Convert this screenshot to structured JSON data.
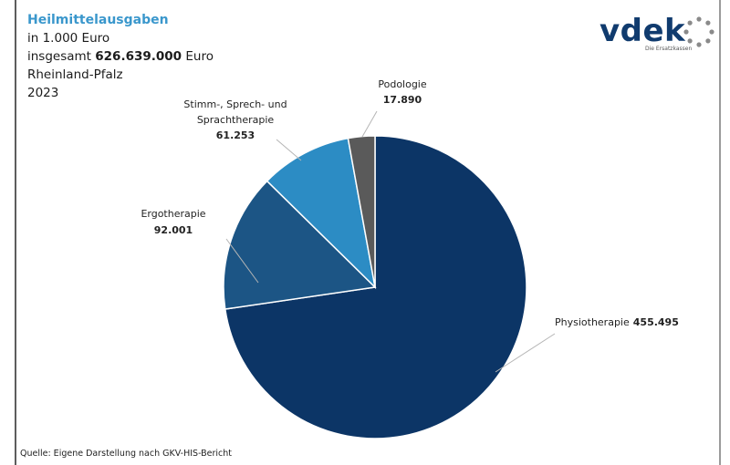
{
  "header": {
    "title": "Heilmittelausgaben",
    "unit": "in 1.000 Euro",
    "total_prefix": "insgesamt ",
    "total_value": "626.639.000",
    "total_suffix": " Euro",
    "region": "Rheinland-Pfalz",
    "year": "2023"
  },
  "logo": {
    "text": "vdek",
    "tagline": "Die Ersatzkassen"
  },
  "source": "Quelle: Eigene Darstellung nach GKV-HIS-Bericht",
  "colors": {
    "physiotherapie": "#0c3566",
    "ergotherapie": "#1c5585",
    "stimm": "#2c8cc4",
    "podologie": "#5a5a5a",
    "title": "#3a97cc"
  },
  "chart_data": {
    "type": "pie",
    "title": "Heilmittelausgaben",
    "slices": [
      {
        "label": "Physiotherapie",
        "value": 455495,
        "value_text": "455.495",
        "color": "#0c3566"
      },
      {
        "label": "Ergotherapie",
        "value": 92001,
        "value_text": "92.001",
        "color": "#1c5585"
      },
      {
        "label": "Stimm-, Sprech- und Sprachtherapie",
        "value": 61253,
        "value_text": "61.253",
        "color": "#2c8cc4"
      },
      {
        "label": "Podologie",
        "value": 17890,
        "value_text": "17.890",
        "color": "#5a5a5a"
      }
    ]
  }
}
